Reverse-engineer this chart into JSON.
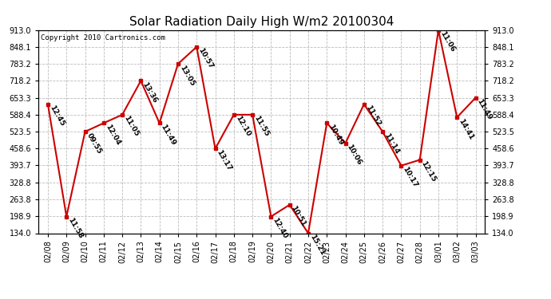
{
  "title": "Solar Radiation Daily High W/m2 20100304",
  "copyright": "Copyright 2010 Cartronics.com",
  "dates": [
    "02/08",
    "02/09",
    "02/10",
    "02/11",
    "02/12",
    "02/13",
    "02/14",
    "02/15",
    "02/16",
    "02/17",
    "02/18",
    "02/19",
    "02/20",
    "02/21",
    "02/22",
    "02/23",
    "02/24",
    "02/25",
    "02/26",
    "02/27",
    "02/28",
    "03/01",
    "03/02",
    "03/03"
  ],
  "values": [
    628,
    198,
    523,
    556,
    588,
    718,
    556,
    783,
    848,
    458,
    588,
    588,
    198,
    243,
    134,
    556,
    479,
    628,
    523,
    393,
    415,
    913,
    578,
    653
  ],
  "labels": [
    "12:45",
    "11:58",
    "09:55",
    "12:04",
    "11:05",
    "13:36",
    "11:49",
    "13:05",
    "10:57",
    "13:17",
    "12:10",
    "11:55",
    "12:40",
    "10:51",
    "15:21",
    "10:49",
    "10:06",
    "11:52",
    "11:14",
    "10:17",
    "12:15",
    "11:06",
    "14:41",
    "11:49"
  ],
  "ylim": [
    134.0,
    913.0
  ],
  "yticks": [
    134.0,
    198.9,
    263.8,
    328.8,
    393.7,
    458.6,
    523.5,
    588.4,
    653.3,
    718.2,
    783.2,
    848.1,
    913.0
  ],
  "line_color": "#cc0000",
  "marker_color": "#cc0000",
  "bg_color": "#ffffff",
  "grid_color": "#bbbbbb",
  "title_fontsize": 11,
  "label_fontsize": 6.5,
  "tick_fontsize": 7,
  "copyright_fontsize": 6.5
}
